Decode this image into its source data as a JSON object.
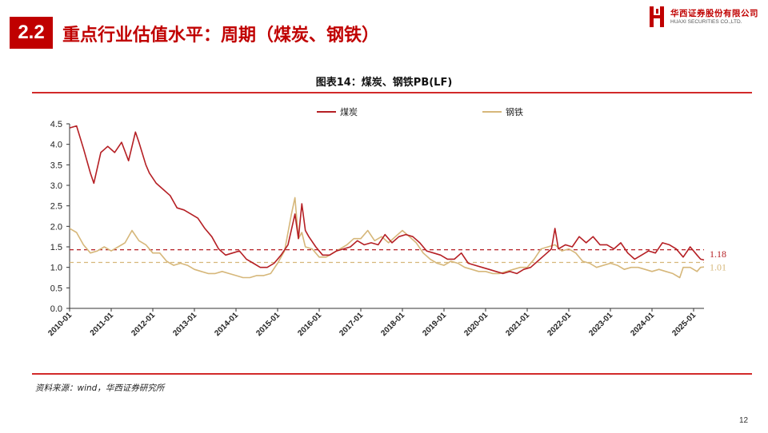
{
  "header": {
    "section_number": "2.2",
    "title": "重点行业估值水平：周期（煤炭、钢铁）",
    "logo_cn": "华西证券股份有限公司",
    "logo_en": "HUAXI SECURITIES CO.,LTD."
  },
  "footer": {
    "source": "资料来源：wind，华西证券研究所",
    "page_number": "12"
  },
  "colors": {
    "brand": "#c00000",
    "coal": "#b51f24",
    "steel": "#d6b77a"
  },
  "chart_data": {
    "type": "line",
    "title": "图表14：煤炭、钢铁PB(LF)",
    "xlabel": "",
    "ylabel": "",
    "ylim": [
      0,
      4.5
    ],
    "yticks": [
      "0.0",
      "0.5",
      "1.0",
      "1.5",
      "2.0",
      "2.5",
      "3.0",
      "3.5",
      "4.0",
      "4.5"
    ],
    "x_tick_labels": [
      "2010-01",
      "2011-01",
      "2012-01",
      "2013-01",
      "2014-01",
      "2015-01",
      "2016-01",
      "2017-01",
      "2018-01",
      "2019-01",
      "2020-01",
      "2021-01",
      "2022-01",
      "2023-01",
      "2024-01",
      "2025-01"
    ],
    "xlim": [
      "2010-01",
      "2025-04"
    ],
    "legend": {
      "position": "top-center"
    },
    "grid": false,
    "series": [
      {
        "name": "煤炭",
        "color": "#b51f24",
        "style": "solid",
        "points": [
          [
            "2010-01",
            4.4
          ],
          [
            "2010-03",
            4.45
          ],
          [
            "2010-05",
            3.9
          ],
          [
            "2010-07",
            3.3
          ],
          [
            "2010-08",
            3.05
          ],
          [
            "2010-10",
            3.8
          ],
          [
            "2010-12",
            3.95
          ],
          [
            "2011-02",
            3.8
          ],
          [
            "2011-04",
            4.05
          ],
          [
            "2011-06",
            3.6
          ],
          [
            "2011-08",
            4.3
          ],
          [
            "2011-09",
            4.05
          ],
          [
            "2011-11",
            3.5
          ],
          [
            "2011-12",
            3.3
          ],
          [
            "2012-02",
            3.05
          ],
          [
            "2012-04",
            2.9
          ],
          [
            "2012-06",
            2.75
          ],
          [
            "2012-08",
            2.45
          ],
          [
            "2012-10",
            2.4
          ],
          [
            "2012-12",
            2.3
          ],
          [
            "2013-02",
            2.2
          ],
          [
            "2013-04",
            1.95
          ],
          [
            "2013-06",
            1.75
          ],
          [
            "2013-08",
            1.45
          ],
          [
            "2013-10",
            1.3
          ],
          [
            "2013-12",
            1.35
          ],
          [
            "2014-02",
            1.4
          ],
          [
            "2014-04",
            1.2
          ],
          [
            "2014-06",
            1.1
          ],
          [
            "2014-08",
            1.0
          ],
          [
            "2014-10",
            1.0
          ],
          [
            "2014-12",
            1.1
          ],
          [
            "2015-02",
            1.3
          ],
          [
            "2015-04",
            1.55
          ],
          [
            "2015-06",
            2.3
          ],
          [
            "2015-07",
            1.7
          ],
          [
            "2015-08",
            2.55
          ],
          [
            "2015-09",
            1.9
          ],
          [
            "2015-10",
            1.75
          ],
          [
            "2015-12",
            1.5
          ],
          [
            "2016-02",
            1.3
          ],
          [
            "2016-04",
            1.3
          ],
          [
            "2016-06",
            1.4
          ],
          [
            "2016-08",
            1.45
          ],
          [
            "2016-10",
            1.5
          ],
          [
            "2016-12",
            1.65
          ],
          [
            "2017-02",
            1.55
          ],
          [
            "2017-04",
            1.6
          ],
          [
            "2017-06",
            1.55
          ],
          [
            "2017-08",
            1.8
          ],
          [
            "2017-10",
            1.6
          ],
          [
            "2017-12",
            1.75
          ],
          [
            "2018-02",
            1.8
          ],
          [
            "2018-04",
            1.75
          ],
          [
            "2018-06",
            1.6
          ],
          [
            "2018-08",
            1.4
          ],
          [
            "2018-10",
            1.35
          ],
          [
            "2018-12",
            1.3
          ],
          [
            "2019-02",
            1.2
          ],
          [
            "2019-04",
            1.2
          ],
          [
            "2019-06",
            1.35
          ],
          [
            "2019-08",
            1.1
          ],
          [
            "2019-10",
            1.05
          ],
          [
            "2019-12",
            1.0
          ],
          [
            "2020-02",
            0.95
          ],
          [
            "2020-04",
            0.9
          ],
          [
            "2020-06",
            0.85
          ],
          [
            "2020-08",
            0.9
          ],
          [
            "2020-10",
            0.85
          ],
          [
            "2020-12",
            0.95
          ],
          [
            "2021-02",
            1.0
          ],
          [
            "2021-04",
            1.15
          ],
          [
            "2021-06",
            1.3
          ],
          [
            "2021-08",
            1.45
          ],
          [
            "2021-09",
            1.95
          ],
          [
            "2021-10",
            1.45
          ],
          [
            "2021-12",
            1.55
          ],
          [
            "2022-02",
            1.5
          ],
          [
            "2022-04",
            1.75
          ],
          [
            "2022-06",
            1.6
          ],
          [
            "2022-08",
            1.75
          ],
          [
            "2022-10",
            1.55
          ],
          [
            "2022-12",
            1.55
          ],
          [
            "2023-02",
            1.45
          ],
          [
            "2023-04",
            1.6
          ],
          [
            "2023-06",
            1.35
          ],
          [
            "2023-08",
            1.2
          ],
          [
            "2023-10",
            1.3
          ],
          [
            "2023-12",
            1.4
          ],
          [
            "2024-02",
            1.35
          ],
          [
            "2024-04",
            1.6
          ],
          [
            "2024-06",
            1.55
          ],
          [
            "2024-08",
            1.45
          ],
          [
            "2024-10",
            1.25
          ],
          [
            "2024-12",
            1.5
          ],
          [
            "2025-02",
            1.3
          ],
          [
            "2025-03",
            1.2
          ],
          [
            "2025-04",
            1.18
          ]
        ]
      },
      {
        "name": "钢铁",
        "color": "#d6b77a",
        "style": "solid",
        "points": [
          [
            "2010-01",
            1.95
          ],
          [
            "2010-03",
            1.85
          ],
          [
            "2010-05",
            1.55
          ],
          [
            "2010-07",
            1.35
          ],
          [
            "2010-09",
            1.4
          ],
          [
            "2010-11",
            1.5
          ],
          [
            "2011-01",
            1.4
          ],
          [
            "2011-03",
            1.5
          ],
          [
            "2011-05",
            1.6
          ],
          [
            "2011-07",
            1.9
          ],
          [
            "2011-09",
            1.65
          ],
          [
            "2011-11",
            1.55
          ],
          [
            "2012-01",
            1.35
          ],
          [
            "2012-03",
            1.35
          ],
          [
            "2012-05",
            1.15
          ],
          [
            "2012-07",
            1.05
          ],
          [
            "2012-09",
            1.1
          ],
          [
            "2012-11",
            1.05
          ],
          [
            "2013-01",
            0.95
          ],
          [
            "2013-03",
            0.9
          ],
          [
            "2013-05",
            0.85
          ],
          [
            "2013-07",
            0.85
          ],
          [
            "2013-09",
            0.9
          ],
          [
            "2013-11",
            0.85
          ],
          [
            "2014-01",
            0.8
          ],
          [
            "2014-03",
            0.75
          ],
          [
            "2014-05",
            0.75
          ],
          [
            "2014-07",
            0.8
          ],
          [
            "2014-09",
            0.8
          ],
          [
            "2014-11",
            0.85
          ],
          [
            "2015-01",
            1.1
          ],
          [
            "2015-03",
            1.4
          ],
          [
            "2015-05",
            2.3
          ],
          [
            "2015-06",
            2.7
          ],
          [
            "2015-07",
            1.7
          ],
          [
            "2015-08",
            1.85
          ],
          [
            "2015-09",
            1.5
          ],
          [
            "2015-11",
            1.45
          ],
          [
            "2016-01",
            1.25
          ],
          [
            "2016-03",
            1.25
          ],
          [
            "2016-05",
            1.35
          ],
          [
            "2016-07",
            1.45
          ],
          [
            "2016-09",
            1.55
          ],
          [
            "2016-11",
            1.7
          ],
          [
            "2017-01",
            1.7
          ],
          [
            "2017-03",
            1.9
          ],
          [
            "2017-05",
            1.65
          ],
          [
            "2017-07",
            1.75
          ],
          [
            "2017-09",
            1.6
          ],
          [
            "2017-11",
            1.75
          ],
          [
            "2018-01",
            1.9
          ],
          [
            "2018-03",
            1.75
          ],
          [
            "2018-05",
            1.6
          ],
          [
            "2018-07",
            1.35
          ],
          [
            "2018-09",
            1.2
          ],
          [
            "2018-11",
            1.1
          ],
          [
            "2019-01",
            1.05
          ],
          [
            "2019-03",
            1.15
          ],
          [
            "2019-05",
            1.1
          ],
          [
            "2019-07",
            1.0
          ],
          [
            "2019-09",
            0.95
          ],
          [
            "2019-11",
            0.9
          ],
          [
            "2020-01",
            0.9
          ],
          [
            "2020-03",
            0.85
          ],
          [
            "2020-05",
            0.85
          ],
          [
            "2020-07",
            0.9
          ],
          [
            "2020-09",
            0.95
          ],
          [
            "2020-11",
            1.0
          ],
          [
            "2021-01",
            1.0
          ],
          [
            "2021-03",
            1.2
          ],
          [
            "2021-05",
            1.45
          ],
          [
            "2021-07",
            1.5
          ],
          [
            "2021-09",
            1.55
          ],
          [
            "2021-11",
            1.4
          ],
          [
            "2022-01",
            1.45
          ],
          [
            "2022-03",
            1.35
          ],
          [
            "2022-05",
            1.15
          ],
          [
            "2022-07",
            1.1
          ],
          [
            "2022-09",
            1.0
          ],
          [
            "2022-11",
            1.05
          ],
          [
            "2023-01",
            1.1
          ],
          [
            "2023-03",
            1.05
          ],
          [
            "2023-05",
            0.95
          ],
          [
            "2023-07",
            1.0
          ],
          [
            "2023-09",
            1.0
          ],
          [
            "2023-11",
            0.95
          ],
          [
            "2024-01",
            0.9
          ],
          [
            "2024-03",
            0.95
          ],
          [
            "2024-05",
            0.9
          ],
          [
            "2024-07",
            0.85
          ],
          [
            "2024-09",
            0.75
          ],
          [
            "2024-10",
            1.0
          ],
          [
            "2024-12",
            1.0
          ],
          [
            "2025-02",
            0.9
          ],
          [
            "2025-03",
            1.0
          ],
          [
            "2025-04",
            1.01
          ]
        ]
      }
    ],
    "reference_lines": [
      {
        "series": "煤炭",
        "value": 1.43,
        "color": "#b51f24",
        "style": "dashed"
      },
      {
        "series": "钢铁",
        "value": 1.12,
        "color": "#d6b77a",
        "style": "dashed"
      }
    ],
    "annotations": [
      {
        "series": "煤炭",
        "text": "1.18",
        "y": 1.32,
        "color": "#b51f24"
      },
      {
        "series": "钢铁",
        "text": "1.01",
        "y": 1.0,
        "color": "#d6b77a"
      }
    ]
  }
}
